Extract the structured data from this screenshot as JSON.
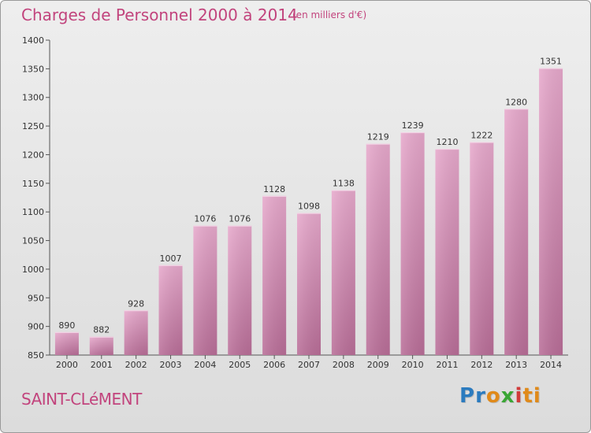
{
  "header": {
    "title": "Charges de Personnel 2000 à 2014",
    "subtitle": "(en milliers d'€)"
  },
  "footer": {
    "town": "SAINT-CLéMENT",
    "brand_letters": [
      "P",
      "r",
      "o",
      "x",
      "i",
      "ti"
    ]
  },
  "colors": {
    "bar_top": "#e7a9cc",
    "bar_bottom": "#b96e98",
    "text_accent": "#c2447d"
  },
  "chart_data": {
    "type": "bar",
    "title": "Charges de Personnel 2000 à 2014",
    "subtitle": "(en milliers d'€)",
    "categories": [
      "2000",
      "2001",
      "2002",
      "2003",
      "2004",
      "2005",
      "2006",
      "2007",
      "2008",
      "2009",
      "2010",
      "2011",
      "2012",
      "2013",
      "2014"
    ],
    "values": [
      890,
      882,
      928,
      1007,
      1076,
      1076,
      1128,
      1098,
      1138,
      1219,
      1239,
      1210,
      1222,
      1280,
      1351
    ],
    "ylim": [
      850,
      1400
    ],
    "yticks": [
      850,
      900,
      950,
      1000,
      1050,
      1100,
      1150,
      1200,
      1250,
      1300,
      1350,
      1400
    ],
    "xlabel": "",
    "ylabel": "",
    "grid": false
  }
}
